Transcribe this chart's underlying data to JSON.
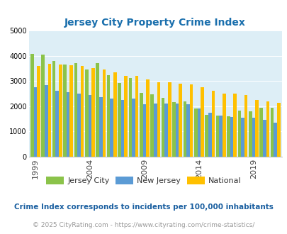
{
  "title": "Jersey City Property Crime Index",
  "years": [
    1999,
    2000,
    2001,
    2002,
    2003,
    2004,
    2005,
    2006,
    2007,
    2008,
    2009,
    2010,
    2011,
    2012,
    2013,
    2014,
    2015,
    2016,
    2017,
    2018,
    2019,
    2020,
    2021
  ],
  "jersey_city": [
    4070,
    4030,
    3800,
    3660,
    3700,
    3450,
    3700,
    3220,
    2910,
    3110,
    2520,
    2460,
    2340,
    2150,
    2200,
    1920,
    1670,
    1630,
    1600,
    1830,
    1800,
    1940,
    1950
  ],
  "new_jersey": [
    2760,
    2840,
    2620,
    2560,
    2500,
    2450,
    2360,
    2310,
    2250,
    2300,
    2080,
    2120,
    2100,
    2100,
    2070,
    1910,
    1750,
    1640,
    1570,
    1540,
    1560,
    1450,
    1340
  ],
  "national": [
    3600,
    3680,
    3660,
    3610,
    3590,
    3500,
    3450,
    3340,
    3200,
    3200,
    3050,
    2950,
    2940,
    2900,
    2870,
    2750,
    2620,
    2510,
    2490,
    2450,
    2240,
    2200,
    2130
  ],
  "bar_colors": {
    "jersey_city": "#8bc34a",
    "new_jersey": "#5b9bd5",
    "national": "#ffc000"
  },
  "bg_color": "#ddeef6",
  "fig_bg": "#ffffff",
  "ylim": [
    0,
    5000
  ],
  "yticks": [
    0,
    1000,
    2000,
    3000,
    4000,
    5000
  ],
  "xlabel_ticks": [
    1999,
    2004,
    2009,
    2014,
    2019
  ],
  "legend_labels": [
    "Jersey City",
    "New Jersey",
    "National"
  ],
  "footnote1": "Crime Index corresponds to incidents per 100,000 inhabitants",
  "footnote2": "© 2025 CityRating.com - https://www.cityrating.com/crime-statistics/",
  "title_color": "#1a6fad",
  "footnote1_color": "#1a5fa0",
  "footnote2_color": "#999999",
  "grid_color": "#c8dce8"
}
